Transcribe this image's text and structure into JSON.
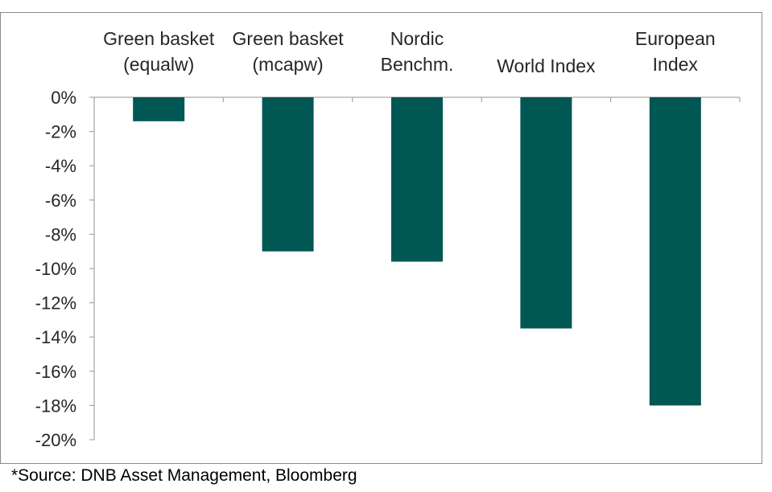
{
  "chart_data": {
    "type": "bar",
    "title": "",
    "xlabel": "",
    "ylabel": "",
    "categories": [
      [
        "Green basket",
        "(equalw)"
      ],
      [
        "Green basket",
        "(mcapw)"
      ],
      [
        "Nordic",
        "Benchm."
      ],
      [
        "World Index"
      ],
      [
        "European",
        "Index"
      ]
    ],
    "values": [
      -1.4,
      -9.0,
      -9.6,
      -13.5,
      -18.0
    ],
    "ylim": [
      -20,
      0
    ],
    "yticks": [
      0,
      -2,
      -4,
      -6,
      -8,
      -10,
      -12,
      -14,
      -16,
      -18,
      -20
    ],
    "ytick_labels": [
      "0%",
      "-2%",
      "-4%",
      "-6%",
      "-8%",
      "-10%",
      "-12%",
      "-14%",
      "-16%",
      "-18%",
      "-20%"
    ],
    "grid": false,
    "legend": "none",
    "bar_color": "#005753"
  },
  "source": "*Source: DNB Asset Management, Bloomberg",
  "colors": {
    "frame": "#8c8c8c",
    "axis": "#a6a6a6",
    "text": "#262626"
  }
}
